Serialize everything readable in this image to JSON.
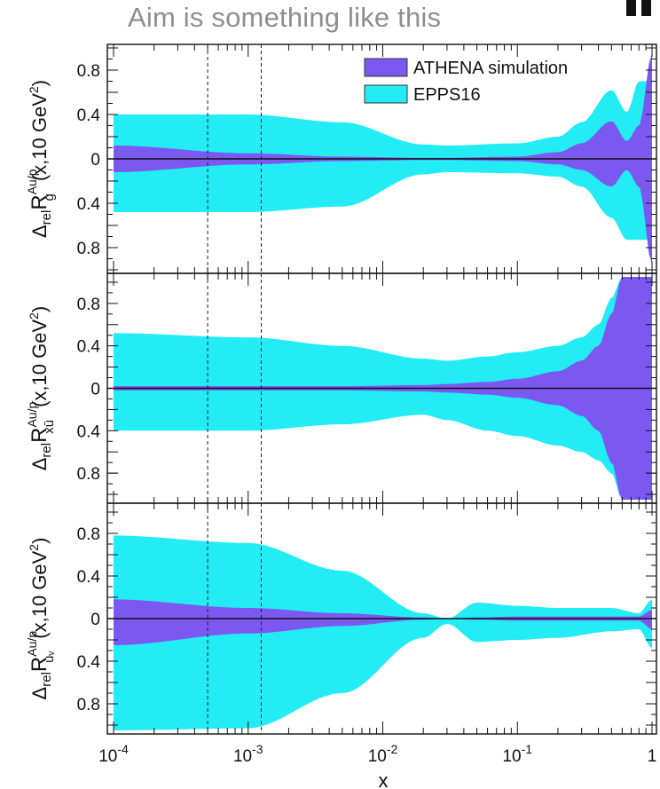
{
  "caption": "Aim is something like this",
  "colors": {
    "athena": "#7b59f0",
    "epps16": "#23ecf5",
    "axis": "#111111",
    "caption": "#8e8e8e"
  },
  "chart_data": {
    "type": "area",
    "xscale": "log",
    "xlim": [
      0.0001,
      1
    ],
    "x_ticks": [
      {
        "value": 0.0001,
        "base": "10",
        "exp": "-4"
      },
      {
        "value": 0.001,
        "base": "10",
        "exp": "-3"
      },
      {
        "value": 0.01,
        "base": "10",
        "exp": "-2"
      },
      {
        "value": 0.1,
        "base": "10",
        "exp": "-1"
      },
      {
        "value": 1,
        "base": "1",
        "exp": ""
      }
    ],
    "xlabel": "x",
    "vlines": [
      0.0005,
      0.00125
    ],
    "legend": {
      "placement": "top-right",
      "entries": [
        {
          "label": "ATHENA simulation",
          "color": "#7b59f0"
        },
        {
          "label": "EPPS16",
          "color": "#23ecf5"
        }
      ]
    },
    "panels": [
      {
        "id": "gluon",
        "ylabel": {
          "main": "Δ",
          "sub1": "rel",
          "R": "R",
          "sup": "Au/p",
          "sub2": "g",
          "tail": "(x,10 GeV",
          "tail_sup": "2",
          "close": ")"
        },
        "ylim": [
          -1.0,
          1.0
        ],
        "y_ticks": [
          {
            "value": 0.8,
            "label": "0.8"
          },
          {
            "value": 0.4,
            "label": "0.4"
          },
          {
            "value": 0,
            "label": "0"
          },
          {
            "value": -0.4,
            "label": "0.4"
          },
          {
            "value": -0.8,
            "label": "0.8"
          }
        ],
        "x": [
          0.0001,
          0.001,
          0.005,
          0.02,
          0.03,
          0.1,
          0.2,
          0.3,
          0.5,
          0.65,
          0.8,
          1.0
        ],
        "series": [
          {
            "name": "EPPS16",
            "color": "#23ecf5",
            "upper": [
              0.4,
              0.4,
              0.33,
              0.13,
              0.12,
              0.14,
              0.2,
              0.33,
              0.62,
              0.42,
              0.7,
              0.7
            ],
            "lower": [
              -0.48,
              -0.48,
              -0.43,
              -0.14,
              -0.12,
              -0.13,
              -0.16,
              -0.25,
              -0.53,
              -0.73,
              -0.73,
              -0.73
            ]
          },
          {
            "name": "ATHENA simulation",
            "color": "#7b59f0",
            "upper": [
              0.12,
              0.05,
              0.02,
              0.01,
              0.01,
              0.02,
              0.06,
              0.14,
              0.34,
              0.16,
              0.3,
              0.95
            ],
            "lower": [
              -0.12,
              -0.05,
              -0.02,
              -0.01,
              -0.01,
              -0.02,
              -0.05,
              -0.1,
              -0.25,
              -0.1,
              -0.25,
              -0.95
            ]
          }
        ]
      },
      {
        "id": "ubar",
        "ylabel": {
          "main": "Δ",
          "sub1": "rel",
          "R": "R",
          "sup": "Au/p",
          "sub2": "xū",
          "tail": "(x,10 GeV",
          "tail_sup": "2",
          "close": ")"
        },
        "ylim": [
          -1.05,
          1.05
        ],
        "y_ticks": [
          {
            "value": 0.8,
            "label": "0.8"
          },
          {
            "value": 0.4,
            "label": "0.4"
          },
          {
            "value": 0,
            "label": "0"
          },
          {
            "value": -0.4,
            "label": "0.4"
          },
          {
            "value": -0.8,
            "label": "0.8"
          }
        ],
        "x": [
          0.0001,
          0.001,
          0.005,
          0.02,
          0.03,
          0.06,
          0.1,
          0.2,
          0.3,
          0.4,
          0.5,
          0.6,
          0.7,
          0.8,
          1.0
        ],
        "series": [
          {
            "name": "EPPS16",
            "color": "#23ecf5",
            "upper": [
              0.52,
              0.48,
              0.4,
              0.28,
              0.26,
              0.3,
              0.34,
              0.4,
              0.48,
              0.6,
              0.85,
              1.05,
              1.05,
              1.05,
              1.05
            ],
            "lower": [
              -0.4,
              -0.4,
              -0.34,
              -0.25,
              -0.3,
              -0.4,
              -0.45,
              -0.54,
              -0.6,
              -0.68,
              -0.8,
              -1.05,
              -1.05,
              -1.05,
              -1.05
            ]
          },
          {
            "name": "ATHENA simulation",
            "color": "#7b59f0",
            "upper": [
              0.02,
              0.02,
              0.02,
              0.03,
              0.04,
              0.06,
              0.09,
              0.16,
              0.26,
              0.4,
              0.7,
              1.05,
              1.05,
              1.05,
              1.05
            ],
            "lower": [
              -0.02,
              -0.02,
              -0.02,
              -0.03,
              -0.04,
              -0.06,
              -0.09,
              -0.16,
              -0.26,
              -0.4,
              -0.7,
              -1.05,
              -1.05,
              -1.05,
              -1.05
            ]
          }
        ]
      },
      {
        "id": "uvalence",
        "ylabel": {
          "main": "Δ",
          "sub1": "rel",
          "R": "R",
          "sup": "Au/p",
          "sub2": "uᵥ",
          "tail": "(x,10 GeV",
          "tail_sup": "2",
          "close": ")"
        },
        "ylim": [
          -1.05,
          1.05
        ],
        "y_ticks": [
          {
            "value": 0.8,
            "label": "0.8"
          },
          {
            "value": 0.4,
            "label": "0.4"
          },
          {
            "value": 0,
            "label": "0"
          },
          {
            "value": -0.4,
            "label": "0.4"
          },
          {
            "value": -0.8,
            "label": "0.8"
          }
        ],
        "x": [
          0.0001,
          0.001,
          0.005,
          0.02,
          0.03,
          0.05,
          0.1,
          0.2,
          0.5,
          0.8,
          1.0
        ],
        "series": [
          {
            "name": "EPPS16",
            "color": "#23ecf5",
            "upper": [
              0.78,
              0.71,
              0.45,
              0.05,
              0.0,
              0.15,
              0.12,
              0.1,
              0.1,
              0.05,
              0.18
            ],
            "lower": [
              -1.05,
              -1.03,
              -0.7,
              -0.18,
              -0.05,
              -0.22,
              -0.2,
              -0.18,
              -0.12,
              -0.1,
              -0.28
            ]
          },
          {
            "name": "ATHENA simulation",
            "color": "#7b59f0",
            "upper": [
              0.18,
              0.1,
              0.05,
              0.01,
              0.0,
              0.01,
              0.02,
              0.02,
              0.02,
              0.02,
              0.08
            ],
            "lower": [
              -0.25,
              -0.14,
              -0.07,
              -0.01,
              0.0,
              -0.01,
              -0.02,
              -0.02,
              -0.02,
              -0.02,
              -0.1
            ]
          }
        ]
      }
    ]
  }
}
